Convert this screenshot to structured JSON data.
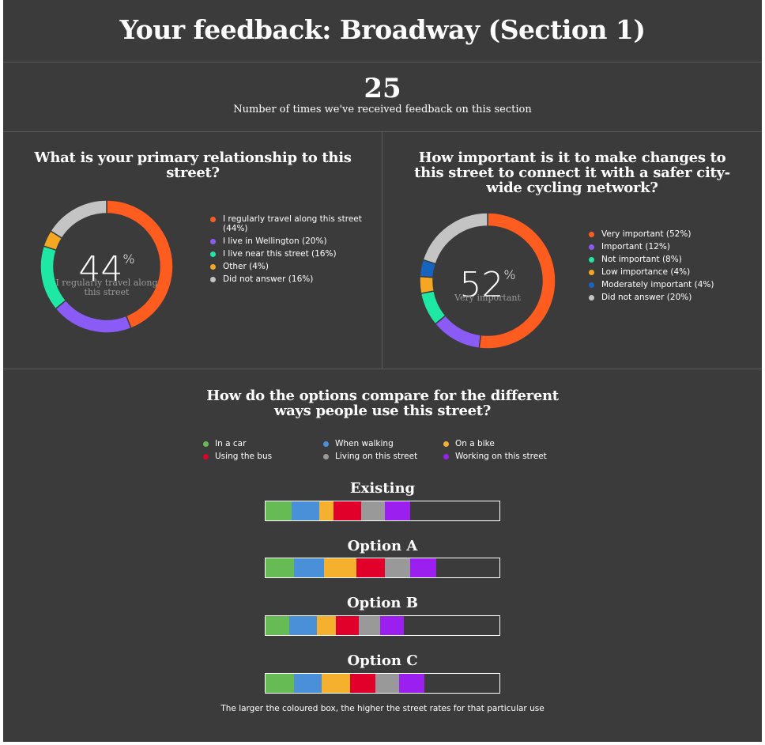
{
  "title": "Your feedback: Broadway (Section 1)",
  "feedback_count": "25",
  "feedback_count_label": "Number of times we've received feedback on this section",
  "chart_data": [
    {
      "type": "pie",
      "title": "What is your primary relationship to this street?",
      "center_value": "44",
      "center_symbol": "%",
      "center_label": "I regularly travel along this street",
      "slices": [
        {
          "label": "I regularly travel along this street (44%)",
          "value": 44,
          "color": "#ff5c1f"
        },
        {
          "label": "I live in Wellington (20%)",
          "value": 20,
          "color": "#8a5cf5"
        },
        {
          "label": "I live near this street (16%)",
          "value": 16,
          "color": "#1ee8a3"
        },
        {
          "label": "Other (4%)",
          "value": 4,
          "color": "#f5a623"
        },
        {
          "label": "Did not answer (16%)",
          "value": 16,
          "color": "#c4c4c4"
        }
      ]
    },
    {
      "type": "pie",
      "title": "How important is it to make changes to this street to connect it with a safer city-wide cycling network?",
      "center_value": "52",
      "center_symbol": "%",
      "center_label": "Very important",
      "slices": [
        {
          "label": "Very important (52%)",
          "value": 52,
          "color": "#ff5c1f"
        },
        {
          "label": "Important (12%)",
          "value": 12,
          "color": "#8a5cf5"
        },
        {
          "label": "Not important (8%)",
          "value": 8,
          "color": "#1ee8a3"
        },
        {
          "label": "Low importance (4%)",
          "value": 4,
          "color": "#f5a623"
        },
        {
          "label": "Moderately important (4%)",
          "value": 4,
          "color": "#1565c0"
        },
        {
          "label": "Did not answer (20%)",
          "value": 20,
          "color": "#c4c4c4"
        }
      ]
    },
    {
      "type": "bar",
      "title": "How do the options compare for the different ways people use this street?",
      "legend": [
        {
          "label": "In a car",
          "color": "#66bb55"
        },
        {
          "label": "When walking",
          "color": "#4a90d9"
        },
        {
          "label": "On a bike",
          "color": "#f5b02e"
        },
        {
          "label": "Using the bus",
          "color": "#e0002a"
        },
        {
          "label": "Living on this street",
          "color": "#999999"
        },
        {
          "label": "Working on this street",
          "color": "#9b20f0"
        }
      ],
      "bar_max": 100,
      "options": [
        {
          "name": "Existing",
          "values": [
            11,
            12,
            6,
            12,
            10,
            11
          ]
        },
        {
          "name": "Option A",
          "values": [
            12,
            13,
            14,
            12,
            11,
            11
          ]
        },
        {
          "name": "Option B",
          "values": [
            10,
            12,
            8,
            10,
            9,
            10
          ]
        },
        {
          "name": "Option C",
          "values": [
            12,
            12,
            12,
            11,
            10,
            11
          ]
        }
      ],
      "note": "The larger the coloured box, the higher the street rates for that particular use"
    }
  ]
}
